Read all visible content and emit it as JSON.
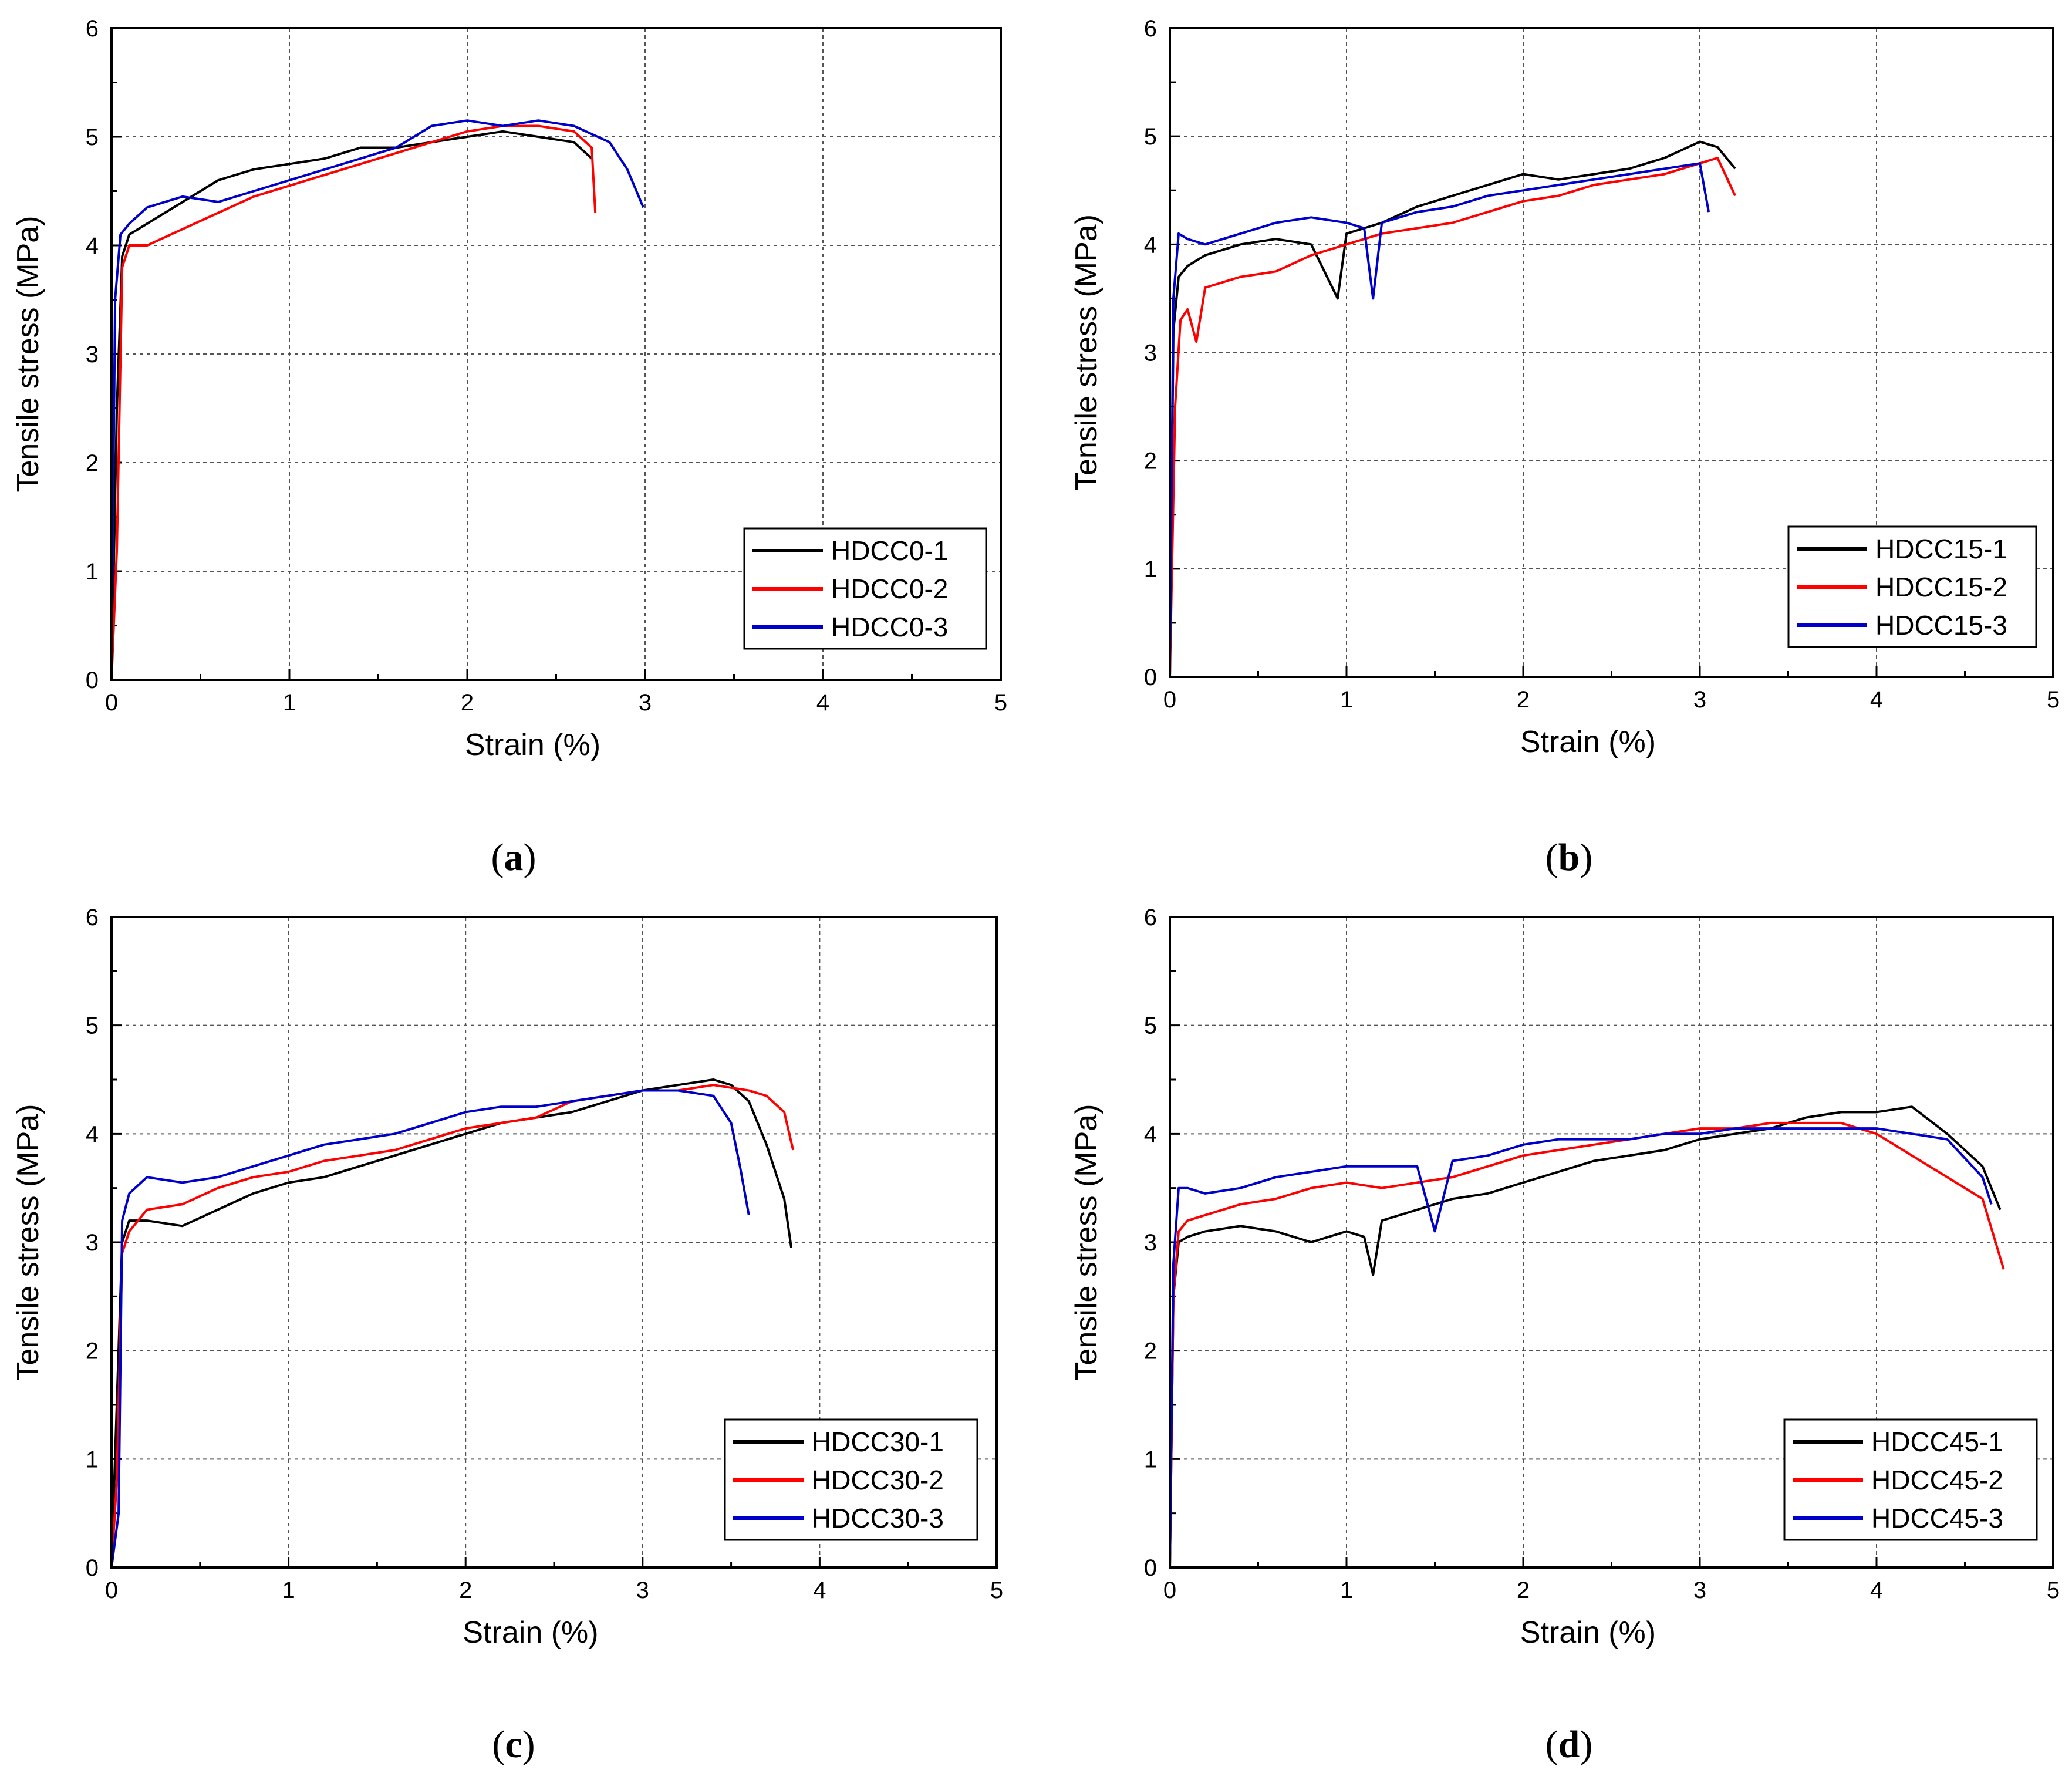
{
  "figure": {
    "panels": [
      {
        "caption_open": "(",
        "caption_letter": "a",
        "caption_close": ")"
      },
      {
        "caption_open": "(",
        "caption_letter": "b",
        "caption_close": ")"
      },
      {
        "caption_open": "(",
        "caption_letter": "c",
        "caption_close": ")"
      },
      {
        "caption_open": "(",
        "caption_letter": "d",
        "caption_close": ")"
      }
    ]
  },
  "colors": {
    "series1": "#000000",
    "series2": "#ff0000",
    "series3": "#0000cc"
  },
  "chart_data": [
    {
      "type": "line",
      "xlabel": "Strain (%)",
      "ylabel": "Tensile stress (MPa)",
      "xlim": [
        0,
        5
      ],
      "ylim": [
        0,
        6
      ],
      "xticks": [
        "0",
        "1",
        "2",
        "3",
        "4",
        "5"
      ],
      "yticks": [
        "0",
        "1",
        "2",
        "3",
        "4",
        "5",
        "6"
      ],
      "grid": true,
      "legend_position": "bottom-right",
      "series": [
        {
          "name": "HDCC0-1",
          "color": "#000000",
          "x": [
            0,
            0.03,
            0.06,
            0.1,
            0.2,
            0.4,
            0.6,
            0.8,
            1.0,
            1.2,
            1.4,
            1.6,
            1.8,
            2.0,
            2.2,
            2.4,
            2.6,
            2.7
          ],
          "y": [
            0,
            2.5,
            3.9,
            4.1,
            4.2,
            4.4,
            4.6,
            4.7,
            4.75,
            4.8,
            4.9,
            4.9,
            4.95,
            5.0,
            5.05,
            5.0,
            4.95,
            4.8
          ]
        },
        {
          "name": "HDCC0-2",
          "color": "#ff0000",
          "x": [
            0,
            0.03,
            0.06,
            0.1,
            0.2,
            0.4,
            0.6,
            0.8,
            1.0,
            1.2,
            1.4,
            1.6,
            1.8,
            2.0,
            2.2,
            2.4,
            2.6,
            2.7,
            2.72
          ],
          "y": [
            0,
            1.2,
            3.8,
            4.0,
            4.0,
            4.15,
            4.3,
            4.45,
            4.55,
            4.65,
            4.75,
            4.85,
            4.95,
            5.05,
            5.1,
            5.1,
            5.05,
            4.9,
            4.3
          ]
        },
        {
          "name": "HDCC0-3",
          "color": "#0000cc",
          "x": [
            0,
            0.02,
            0.05,
            0.1,
            0.2,
            0.4,
            0.6,
            0.8,
            1.0,
            1.2,
            1.4,
            1.6,
            1.8,
            2.0,
            2.2,
            2.4,
            2.6,
            2.8,
            2.9,
            2.99
          ],
          "y": [
            0,
            3.5,
            4.1,
            4.2,
            4.35,
            4.45,
            4.4,
            4.5,
            4.6,
            4.7,
            4.8,
            4.9,
            5.1,
            5.15,
            5.1,
            5.15,
            5.1,
            4.95,
            4.7,
            4.35
          ]
        }
      ]
    },
    {
      "type": "line",
      "xlabel": "Strain (%)",
      "ylabel": "Tensile stress (MPa)",
      "xlim": [
        0,
        5
      ],
      "ylim": [
        0,
        6
      ],
      "xticks": [
        "0",
        "1",
        "2",
        "3",
        "4",
        "5"
      ],
      "yticks": [
        "0",
        "1",
        "2",
        "3",
        "4",
        "5",
        "6"
      ],
      "grid": true,
      "legend_position": "bottom-right",
      "series": [
        {
          "name": "HDCC15-1",
          "color": "#000000",
          "x": [
            0,
            0.02,
            0.05,
            0.1,
            0.2,
            0.4,
            0.6,
            0.8,
            0.95,
            1.0,
            1.2,
            1.4,
            1.6,
            1.8,
            2.0,
            2.2,
            2.4,
            2.6,
            2.8,
            3.0,
            3.1,
            3.2
          ],
          "y": [
            0,
            3.2,
            3.7,
            3.8,
            3.9,
            4.0,
            4.05,
            4.0,
            3.5,
            4.1,
            4.2,
            4.35,
            4.45,
            4.55,
            4.65,
            4.6,
            4.65,
            4.7,
            4.8,
            4.95,
            4.9,
            4.7
          ]
        },
        {
          "name": "HDCC15-2",
          "color": "#ff0000",
          "x": [
            0,
            0.03,
            0.06,
            0.1,
            0.15,
            0.2,
            0.4,
            0.6,
            0.8,
            1.0,
            1.2,
            1.4,
            1.6,
            1.8,
            2.0,
            2.2,
            2.4,
            2.6,
            2.8,
            3.0,
            3.1,
            3.2
          ],
          "y": [
            0,
            2.5,
            3.3,
            3.4,
            3.1,
            3.6,
            3.7,
            3.75,
            3.9,
            4.0,
            4.1,
            4.15,
            4.2,
            4.3,
            4.4,
            4.45,
            4.55,
            4.6,
            4.65,
            4.75,
            4.8,
            4.45
          ]
        },
        {
          "name": "HDCC15-3",
          "color": "#0000cc",
          "x": [
            0,
            0.02,
            0.05,
            0.1,
            0.2,
            0.4,
            0.6,
            0.8,
            1.0,
            1.1,
            1.15,
            1.2,
            1.4,
            1.6,
            1.8,
            2.0,
            2.2,
            2.4,
            2.6,
            2.8,
            3.0,
            3.05
          ],
          "y": [
            0,
            3.5,
            4.1,
            4.05,
            4.0,
            4.1,
            4.2,
            4.25,
            4.2,
            4.15,
            3.5,
            4.2,
            4.3,
            4.35,
            4.45,
            4.5,
            4.55,
            4.6,
            4.65,
            4.7,
            4.75,
            4.3
          ]
        }
      ]
    },
    {
      "type": "line",
      "xlabel": "Strain (%)",
      "ylabel": "Tensile stress (MPa)",
      "xlim": [
        0,
        5
      ],
      "ylim": [
        0,
        6
      ],
      "xticks": [
        "0",
        "1",
        "2",
        "3",
        "4",
        "5"
      ],
      "yticks": [
        "0",
        "1",
        "2",
        "3",
        "4",
        "5",
        "6"
      ],
      "grid": true,
      "legend_position": "bottom-right",
      "series": [
        {
          "name": "HDCC30-1",
          "color": "#000000",
          "x": [
            0,
            0.03,
            0.06,
            0.1,
            0.2,
            0.4,
            0.6,
            0.8,
            1.0,
            1.2,
            1.4,
            1.6,
            1.8,
            2.0,
            2.2,
            2.4,
            2.6,
            2.8,
            3.0,
            3.2,
            3.4,
            3.5,
            3.6,
            3.7,
            3.8,
            3.84
          ],
          "y": [
            0,
            1.5,
            3.0,
            3.2,
            3.2,
            3.15,
            3.3,
            3.45,
            3.55,
            3.6,
            3.7,
            3.8,
            3.9,
            4.0,
            4.1,
            4.15,
            4.2,
            4.3,
            4.4,
            4.45,
            4.5,
            4.45,
            4.3,
            3.9,
            3.4,
            2.95
          ]
        },
        {
          "name": "HDCC30-2",
          "color": "#ff0000",
          "x": [
            0,
            0.03,
            0.06,
            0.1,
            0.2,
            0.4,
            0.6,
            0.8,
            1.0,
            1.2,
            1.4,
            1.6,
            1.8,
            2.0,
            2.2,
            2.4,
            2.6,
            2.8,
            3.0,
            3.2,
            3.4,
            3.6,
            3.7,
            3.8,
            3.85
          ],
          "y": [
            0,
            0.8,
            2.9,
            3.1,
            3.3,
            3.35,
            3.5,
            3.6,
            3.65,
            3.75,
            3.8,
            3.85,
            3.95,
            4.05,
            4.1,
            4.15,
            4.3,
            4.35,
            4.4,
            4.4,
            4.45,
            4.4,
            4.35,
            4.2,
            3.85
          ]
        },
        {
          "name": "HDCC30-3",
          "color": "#0000cc",
          "x": [
            0,
            0.04,
            0.06,
            0.1,
            0.2,
            0.4,
            0.6,
            0.8,
            1.0,
            1.2,
            1.4,
            1.6,
            1.8,
            2.0,
            2.2,
            2.4,
            2.6,
            2.8,
            3.0,
            3.2,
            3.4,
            3.5,
            3.55,
            3.6
          ],
          "y": [
            0,
            0.5,
            3.2,
            3.45,
            3.6,
            3.55,
            3.6,
            3.7,
            3.8,
            3.9,
            3.95,
            4.0,
            4.1,
            4.2,
            4.25,
            4.25,
            4.3,
            4.35,
            4.4,
            4.4,
            4.35,
            4.1,
            3.7,
            3.25
          ]
        }
      ]
    },
    {
      "type": "line",
      "xlabel": "Strain (%)",
      "ylabel": "Tensile stress (MPa)",
      "xlim": [
        0,
        5
      ],
      "ylim": [
        0,
        6
      ],
      "xticks": [
        "0",
        "1",
        "2",
        "3",
        "4",
        "5"
      ],
      "yticks": [
        "0",
        "1",
        "2",
        "3",
        "4",
        "5",
        "6"
      ],
      "grid": true,
      "legend_position": "bottom-right",
      "series": [
        {
          "name": "HDCC45-1",
          "color": "#000000",
          "x": [
            0,
            0.02,
            0.05,
            0.1,
            0.2,
            0.4,
            0.6,
            0.8,
            1.0,
            1.1,
            1.15,
            1.2,
            1.4,
            1.6,
            1.8,
            2.0,
            2.2,
            2.4,
            2.6,
            2.8,
            3.0,
            3.2,
            3.4,
            3.6,
            3.8,
            4.0,
            4.2,
            4.4,
            4.6,
            4.7
          ],
          "y": [
            0,
            2.5,
            3.0,
            3.05,
            3.1,
            3.15,
            3.1,
            3.0,
            3.1,
            3.05,
            2.7,
            3.2,
            3.3,
            3.4,
            3.45,
            3.55,
            3.65,
            3.75,
            3.8,
            3.85,
            3.95,
            4.0,
            4.05,
            4.15,
            4.2,
            4.2,
            4.25,
            4.0,
            3.7,
            3.3
          ]
        },
        {
          "name": "HDCC45-2",
          "color": "#ff0000",
          "x": [
            0,
            0.02,
            0.05,
            0.1,
            0.2,
            0.4,
            0.6,
            0.8,
            1.0,
            1.2,
            1.4,
            1.6,
            1.8,
            2.0,
            2.2,
            2.4,
            2.6,
            2.8,
            3.0,
            3.2,
            3.4,
            3.6,
            3.8,
            4.0,
            4.2,
            4.4,
            4.6,
            4.72
          ],
          "y": [
            0,
            2.5,
            3.1,
            3.2,
            3.25,
            3.35,
            3.4,
            3.5,
            3.55,
            3.5,
            3.55,
            3.6,
            3.7,
            3.8,
            3.85,
            3.9,
            3.95,
            4.0,
            4.05,
            4.05,
            4.1,
            4.1,
            4.1,
            4.0,
            3.8,
            3.6,
            3.4,
            2.75
          ]
        },
        {
          "name": "HDCC45-3",
          "color": "#0000cc",
          "x": [
            0,
            0.02,
            0.05,
            0.1,
            0.2,
            0.4,
            0.6,
            0.8,
            1.0,
            1.2,
            1.4,
            1.5,
            1.6,
            1.8,
            2.0,
            2.2,
            2.4,
            2.6,
            2.8,
            3.0,
            3.2,
            3.4,
            3.6,
            3.8,
            4.0,
            4.2,
            4.4,
            4.6,
            4.65
          ],
          "y": [
            0,
            2.8,
            3.5,
            3.5,
            3.45,
            3.5,
            3.6,
            3.65,
            3.7,
            3.7,
            3.7,
            3.1,
            3.75,
            3.8,
            3.9,
            3.95,
            3.95,
            3.95,
            4.0,
            4.0,
            4.05,
            4.05,
            4.05,
            4.05,
            4.05,
            4.0,
            3.95,
            3.6,
            3.35
          ]
        }
      ]
    }
  ]
}
